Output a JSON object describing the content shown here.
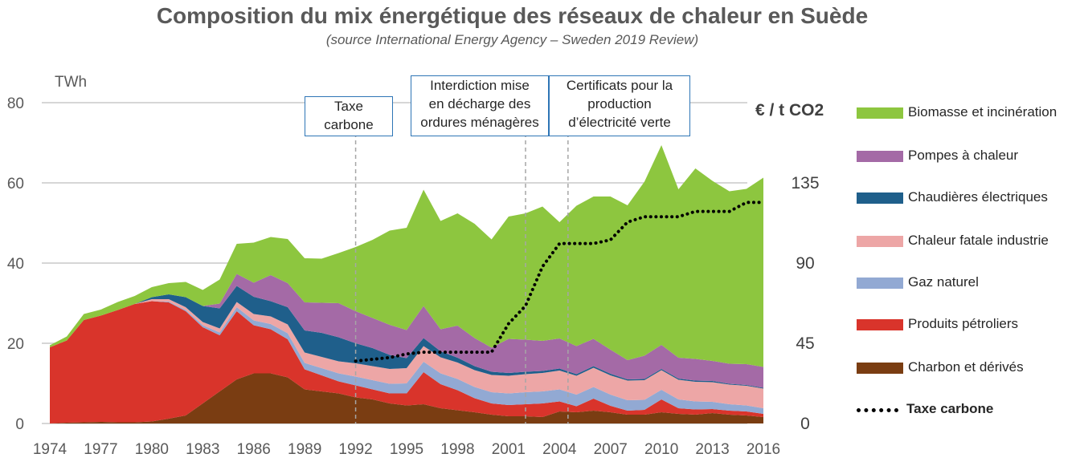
{
  "title": "Composition du mix énergétique des réseaux de chaleur en Suède",
  "subtitle": "(source International Energy Agency – Sweden 2019 Review)",
  "chart_data": {
    "type": "area",
    "stacked": true,
    "x": [
      1974,
      1975,
      1976,
      1977,
      1978,
      1979,
      1980,
      1981,
      1982,
      1983,
      1984,
      1985,
      1986,
      1987,
      1988,
      1989,
      1990,
      1991,
      1992,
      1993,
      1994,
      1995,
      1996,
      1997,
      1998,
      1999,
      2000,
      2001,
      2002,
      2003,
      2004,
      2005,
      2006,
      2007,
      2008,
      2009,
      2010,
      2011,
      2012,
      2013,
      2014,
      2015,
      2016
    ],
    "x_ticks": [
      "1974",
      "1977",
      "1980",
      "1983",
      "1986",
      "1989",
      "1992",
      "1995",
      "1998",
      "2001",
      "2004",
      "2007",
      "2010",
      "2013",
      "2016"
    ],
    "xlim": [
      1974,
      2016
    ],
    "ylabel": "TWh",
    "ylim": [
      0,
      80
    ],
    "y_ticks": [
      "0",
      "20",
      "40",
      "60",
      "80"
    ],
    "y2label": "€ / t CO2",
    "y2lim": [
      0,
      180
    ],
    "y2_ticks": [
      "0",
      "45",
      "90",
      "135"
    ],
    "grid": "horizontal",
    "legend_position": "right",
    "series": [
      {
        "name": "Charbon et dérivés",
        "color": "#7a3d12",
        "values": [
          0,
          0.2,
          0.3,
          0.4,
          0.3,
          0.3,
          0.5,
          1.2,
          2,
          5,
          8,
          11,
          12.5,
          12.5,
          11.5,
          8.5,
          8,
          7.5,
          6.5,
          6,
          5,
          4.5,
          4.8,
          3.8,
          3.3,
          2.8,
          2.2,
          1.8,
          1.8,
          1.6,
          3,
          2.8,
          3.2,
          2.8,
          2.2,
          2.2,
          2.8,
          2.4,
          2.2,
          2.6,
          2.2,
          2,
          1.6
        ]
      },
      {
        "name": "Produits pétroliers",
        "color": "#d9342b",
        "values": [
          19,
          20.5,
          25.5,
          26.5,
          28,
          29.5,
          30,
          29,
          26,
          19,
          14,
          17,
          12,
          11,
          9.5,
          5,
          4,
          3,
          3,
          2.5,
          2.5,
          3,
          8,
          6,
          5,
          3.5,
          2.8,
          2.8,
          3,
          3.4,
          2.5,
          1.5,
          3,
          1.6,
          1,
          1.2,
          3.2,
          1.4,
          1.3,
          1,
          1,
          1,
          0.8
        ]
      },
      {
        "name": "Gaz naturel",
        "color": "#92a9d3",
        "values": [
          0,
          0,
          0,
          0,
          0,
          0,
          0,
          0.2,
          0.3,
          0.5,
          0.7,
          1,
          1.2,
          1.3,
          1.5,
          1.6,
          1.8,
          2,
          2.2,
          2.3,
          2.4,
          2.5,
          2.6,
          2.7,
          2.8,
          2.8,
          2.8,
          2.9,
          3,
          3,
          3,
          2.9,
          2.9,
          2.8,
          2.6,
          2.5,
          2.4,
          2.2,
          2,
          1.8,
          1.6,
          1.5,
          1.4
        ]
      },
      {
        "name": "Chaleur fatale industrie",
        "color": "#eda6a6",
        "values": [
          0,
          0,
          0,
          0,
          0,
          0,
          0.5,
          0.6,
          0.7,
          0.8,
          1,
          1.3,
          1.6,
          1.9,
          2.2,
          2.6,
          2.8,
          3,
          3.3,
          3.5,
          3.7,
          3.8,
          3.9,
          4,
          4.1,
          4.2,
          4.3,
          4.4,
          4.5,
          4.6,
          4.7,
          4.7,
          4.8,
          4.8,
          4.9,
          4.9,
          4.9,
          4.9,
          4.9,
          4.9,
          4.9,
          4.9,
          4.9
        ]
      },
      {
        "name": "Chaudières électriques",
        "color": "#1f5f8b",
        "values": [
          0,
          0,
          0,
          0,
          0,
          0,
          0.5,
          1.2,
          2.5,
          4,
          5,
          4,
          4.3,
          3.8,
          4.3,
          5.5,
          6,
          6,
          5,
          4.5,
          3.5,
          2.5,
          2,
          1.5,
          1.2,
          1,
          0.8,
          0.7,
          0.6,
          0.5,
          0.5,
          0.4,
          0.4,
          0.4,
          0.3,
          0.3,
          0.3,
          0.3,
          0.3,
          0.3,
          0.2,
          0.2,
          0.2
        ]
      },
      {
        "name": "Pompes à chaleur",
        "color": "#a46aa6",
        "values": [
          0,
          0,
          0,
          0,
          0,
          0,
          0,
          0,
          0,
          0,
          1.2,
          3,
          3.5,
          6.5,
          6,
          7,
          7.5,
          8.5,
          8,
          7.5,
          7.5,
          7,
          8,
          5.5,
          8,
          7,
          6,
          8.5,
          8,
          7.5,
          7.5,
          7,
          6.8,
          6,
          4.8,
          5.8,
          6,
          5.2,
          5.4,
          5,
          5,
          5.2,
          5.2
        ]
      },
      {
        "name": "Biomasse et incinération",
        "color": "#8dc63f",
        "values": [
          0.5,
          1,
          1.5,
          1.5,
          2,
          2,
          2.5,
          2.8,
          3.8,
          4,
          6,
          7.5,
          10,
          9.5,
          11,
          11,
          11,
          12.5,
          16,
          19.5,
          23.5,
          25.5,
          29,
          27,
          28,
          28.5,
          27,
          30.5,
          31.5,
          33.5,
          29,
          35,
          35.5,
          38.2,
          38.6,
          43.4,
          49.8,
          42,
          47.5,
          44.9,
          43,
          43.7,
          47.2
        ]
      }
    ],
    "line_series": {
      "name": "Taxe carbone",
      "axis": "right",
      "style": "dotted",
      "color": "#000000",
      "x": [
        1992,
        1993,
        1994,
        1995,
        1996,
        1997,
        1998,
        1999,
        2000,
        2001,
        2002,
        2003,
        2004,
        2005,
        2006,
        2007,
        2008,
        2009,
        2010,
        2011,
        2012,
        2013,
        2014,
        2015,
        2016
      ],
      "values": [
        35,
        36,
        37,
        39,
        40,
        40,
        40,
        40,
        40,
        56,
        66,
        88,
        101,
        101,
        101,
        103,
        113,
        116,
        116,
        116,
        119,
        119,
        119,
        124,
        124
      ]
    },
    "annotations": [
      {
        "year": 1992,
        "label": [
          "Taxe",
          "carbone"
        ]
      },
      {
        "year": 2002,
        "label": [
          "Interdiction mise",
          "en décharge des",
          "ordures ménagères"
        ]
      },
      {
        "year": 2004.5,
        "label": [
          "Certificats pour la",
          "production",
          "d’électricité verte"
        ]
      }
    ]
  },
  "legend": [
    {
      "label": "Biomasse et incinération",
      "color": "#8dc63f",
      "kind": "area"
    },
    {
      "label": "Pompes à chaleur",
      "color": "#a46aa6",
      "kind": "area"
    },
    {
      "label": "Chaudières électriques",
      "color": "#1f5f8b",
      "kind": "area"
    },
    {
      "label": "Chaleur fatale industrie",
      "color": "#eda6a6",
      "kind": "area"
    },
    {
      "label": "Gaz naturel",
      "color": "#92a9d3",
      "kind": "area"
    },
    {
      "label": "Produits pétroliers",
      "color": "#d9342b",
      "kind": "area"
    },
    {
      "label": "Charbon et dérivés",
      "color": "#7a3d12",
      "kind": "area"
    },
    {
      "label": "Taxe carbone",
      "color": "#000000",
      "kind": "dotted-line"
    }
  ]
}
